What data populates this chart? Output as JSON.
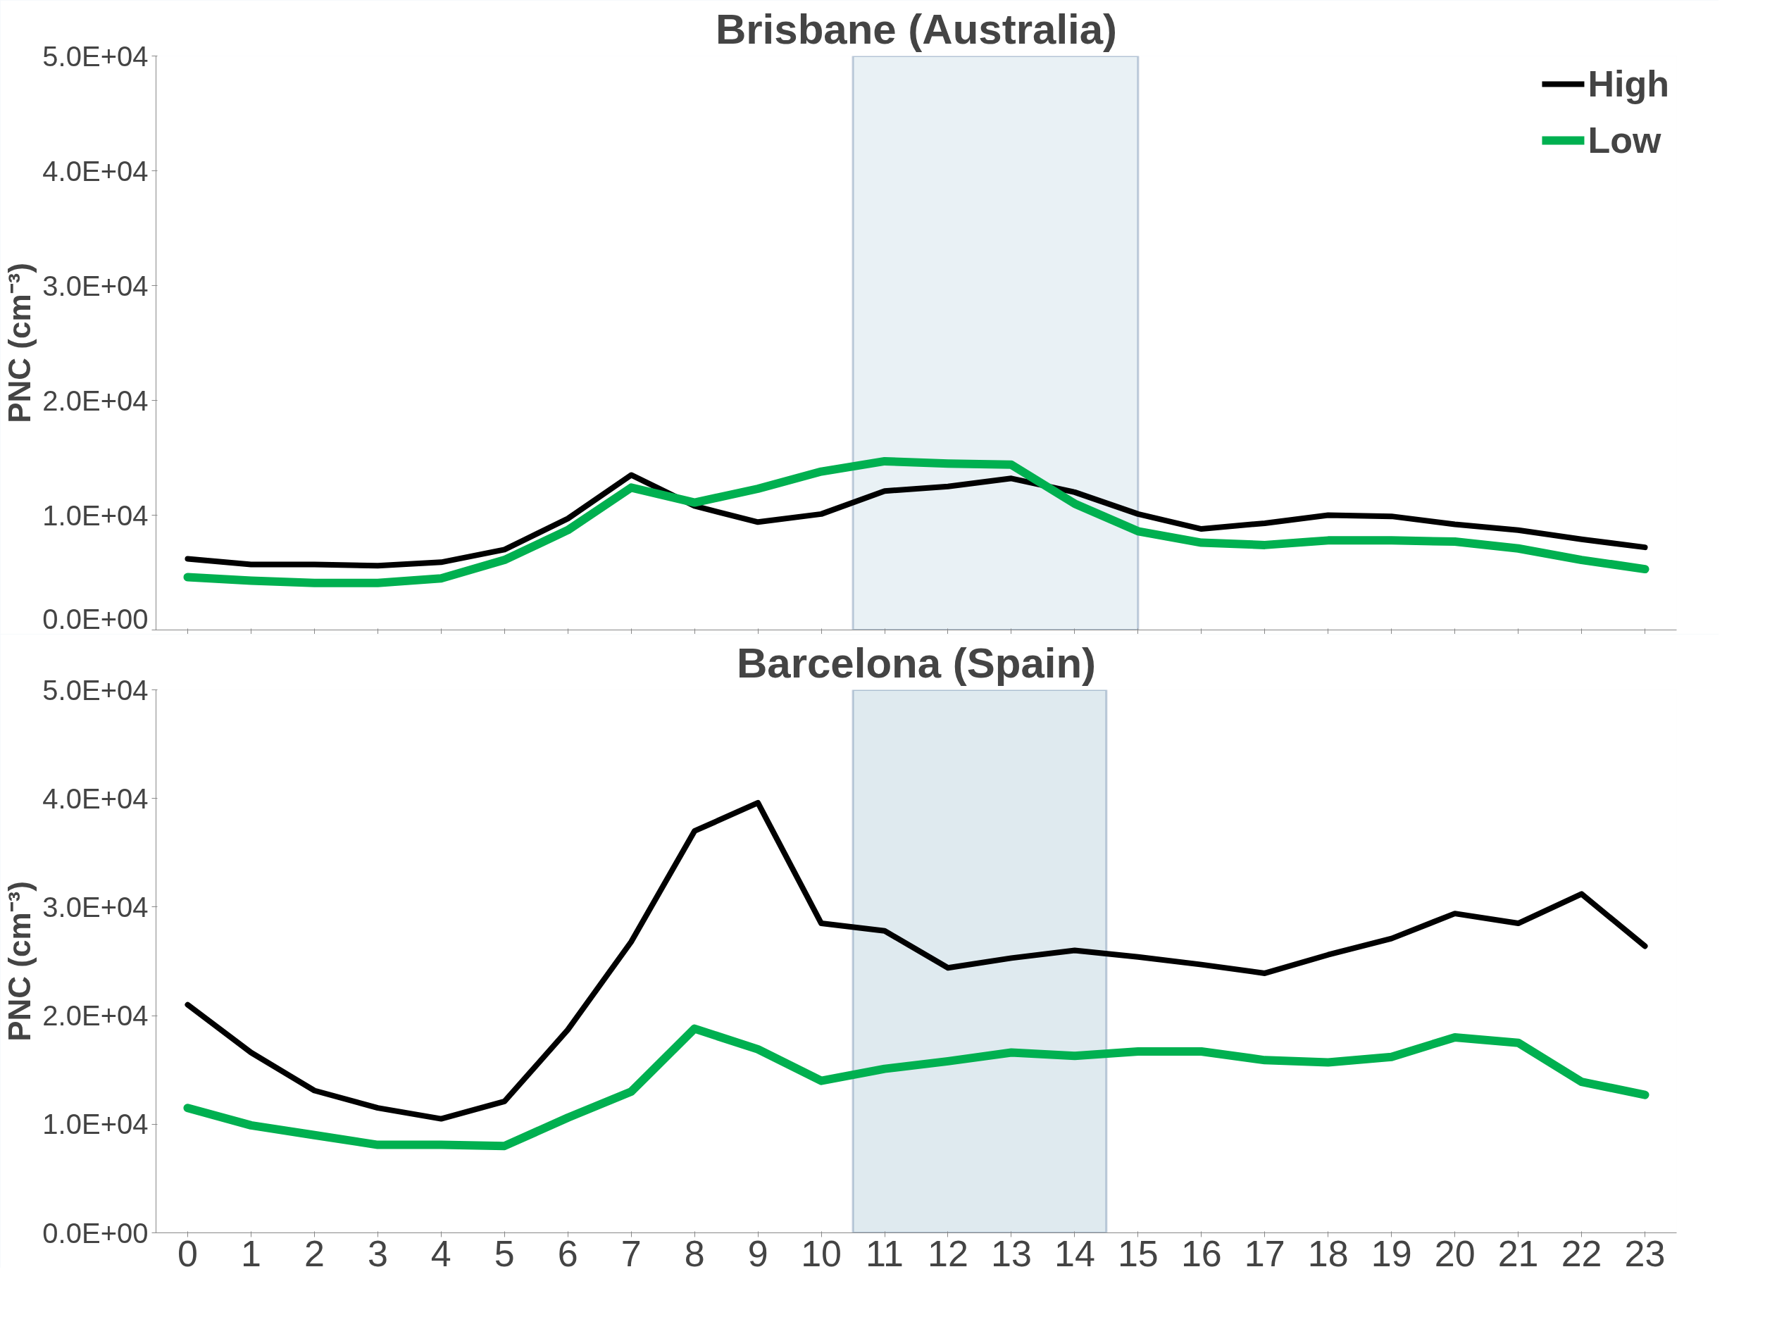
{
  "chart_data": [
    {
      "type": "line",
      "title": "Brisbane (Australia)",
      "ylabel": "PNC (cm⁻³)",
      "x": [
        0,
        1,
        2,
        3,
        4,
        5,
        6,
        7,
        8,
        9,
        10,
        11,
        12,
        13,
        14,
        15,
        16,
        17,
        18,
        19,
        20,
        21,
        22,
        23
      ],
      "xlim": [
        -0.5,
        23.5
      ],
      "xticks": [
        0,
        1,
        2,
        3,
        4,
        5,
        6,
        7,
        8,
        9,
        10,
        11,
        12,
        13,
        14,
        15,
        16,
        17,
        18,
        19,
        20,
        21,
        22,
        23
      ],
      "ylim": [
        0,
        50000
      ],
      "yticks": [
        {
          "value": 0,
          "label": "0.0E+00"
        },
        {
          "value": 10000,
          "label": "1.0E+04"
        },
        {
          "value": 20000,
          "label": "2.0E+04"
        },
        {
          "value": 30000,
          "label": "3.0E+04"
        },
        {
          "value": 40000,
          "label": "4.0E+04"
        },
        {
          "value": 50000,
          "label": "5.0E+04"
        }
      ],
      "tick_labels": "y",
      "grid": false,
      "legend": "top right",
      "marker": "none",
      "line_style": "solid",
      "series": [
        {
          "name": "High",
          "color": "#000000",
          "values": [
            6200,
            5700,
            5700,
            5600,
            5900,
            7000,
            9700,
            13500,
            10800,
            9400,
            10100,
            12100,
            12500,
            13200,
            12000,
            10100,
            8800,
            9300,
            10000,
            9900,
            9200,
            8700,
            7900,
            7200
          ]
        },
        {
          "name": "Low",
          "color": "#00b050",
          "values": [
            4600,
            4300,
            4100,
            4100,
            4500,
            6100,
            8700,
            12400,
            11100,
            12300,
            13800,
            14700,
            14500,
            14400,
            11000,
            8600,
            7600,
            7400,
            7800,
            7800,
            7700,
            7100,
            6100,
            5300
          ]
        }
      ],
      "bands": [
        {
          "axis": "x",
          "from": 10.5,
          "to": 15,
          "color": "#dbe8ee"
        }
      ]
    },
    {
      "type": "line",
      "title": "Barcelona (Spain)",
      "ylabel": "PNC (cm⁻³)",
      "x": [
        0,
        1,
        2,
        3,
        4,
        5,
        6,
        7,
        8,
        9,
        10,
        11,
        12,
        13,
        14,
        15,
        16,
        17,
        18,
        19,
        20,
        21,
        22,
        23
      ],
      "xlim": [
        -0.5,
        23.5
      ],
      "xticks": [
        0,
        1,
        2,
        3,
        4,
        5,
        6,
        7,
        8,
        9,
        10,
        11,
        12,
        13,
        14,
        15,
        16,
        17,
        18,
        19,
        20,
        21,
        22,
        23
      ],
      "ylim": [
        0,
        50000
      ],
      "yticks": [
        {
          "value": 0,
          "label": "0.0E+00"
        },
        {
          "value": 10000,
          "label": "1.0E+04"
        },
        {
          "value": 20000,
          "label": "2.0E+04"
        },
        {
          "value": 30000,
          "label": "3.0E+04"
        },
        {
          "value": 40000,
          "label": "4.0E+04"
        },
        {
          "value": 50000,
          "label": "5.0E+04"
        }
      ],
      "grid": false,
      "marker": "none",
      "line_style": "solid",
      "series": [
        {
          "color": "#000000",
          "values": [
            21000,
            16600,
            13100,
            11500,
            10500,
            12100,
            18700,
            26800,
            37000,
            39600,
            28500,
            27800,
            24400,
            25300,
            26000,
            25400,
            24700,
            23900,
            25600,
            27100,
            29400,
            28500,
            31200,
            26400
          ]
        },
        {
          "color": "#00b050",
          "values": [
            11500,
            9900,
            9000,
            8100,
            8100,
            8000,
            10600,
            13000,
            18800,
            16900,
            14000,
            15100,
            15800,
            16600,
            16300,
            16700,
            16700,
            15900,
            15700,
            16200,
            18000,
            17500,
            13900,
            12700
          ]
        }
      ],
      "bands": [
        {
          "axis": "x",
          "from": 10.5,
          "to": 14.5,
          "color": "#c9dce5"
        }
      ]
    }
  ]
}
